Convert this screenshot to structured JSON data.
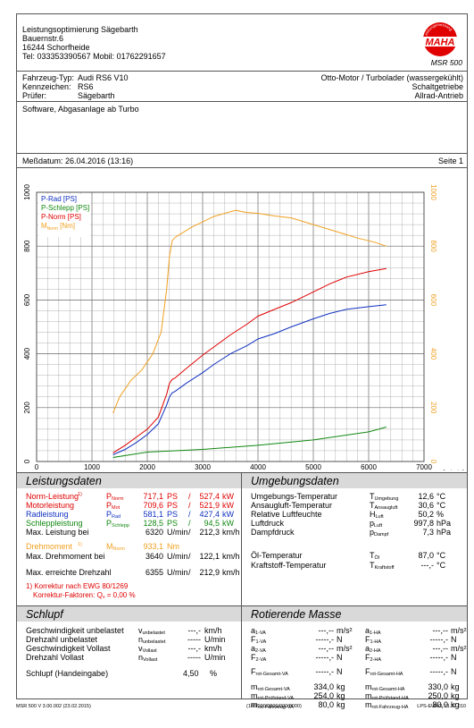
{
  "header": {
    "company_lines": [
      "Leistungsoptimierung Sägebarth",
      "Bauernstr.6",
      "16244 Schorfheide",
      "Tel: 033353390567 Mobil: 01762291657"
    ],
    "logo_ring_text": "Leistungsmessung",
    "logo_text": "MAHA",
    "model": "MSR 500"
  },
  "vehicle": {
    "rows": [
      {
        "label": "Fahrzeug-Typ:",
        "value": "Audi RS6 V10"
      },
      {
        "label": "Kennzeichen:",
        "value": "RS6"
      },
      {
        "label": "Prüfer:",
        "value": "Sägebarth"
      }
    ],
    "engine": "Otto-Motor / Turbolader (wassergekühlt)",
    "gearbox": "Schaltgetriebe",
    "drive": "Allrad-Antrieb",
    "note": "Software, Abgasanlage ab Turbo"
  },
  "measurement": {
    "date": "Meßdatum: 26.04.2016 (13:16)",
    "page": "Seite 1"
  },
  "chart_data": {
    "type": "line",
    "x_unit": "n [U/min]",
    "xlim": [
      0,
      7000
    ],
    "ylim_left": [
      0,
      1000
    ],
    "ylim_right": [
      0,
      1000
    ],
    "x_ticks": [
      "0",
      "1000",
      "2000",
      "3000",
      "4000",
      "5000",
      "6000",
      "7000"
    ],
    "y_ticks_left": [
      "0",
      "200",
      "400",
      "600",
      "800",
      "1000"
    ],
    "y_ticks_right": [
      "0",
      "200",
      "400",
      "600",
      "800",
      "1000"
    ],
    "legend": [
      "P-Rad [PS]",
      "P-Schlepp [PS]",
      "P-Norm [PS]",
      "M_Norm [Nm]"
    ],
    "series": [
      {
        "name": "P-Rad [PS]",
        "color": "#1030c0",
        "x": [
          1380,
          1600,
          1800,
          2000,
          2200,
          2350,
          2400,
          2450,
          2500,
          2700,
          3000,
          3200,
          3500,
          3800,
          4000,
          4300,
          4600,
          5000,
          5300,
          5600,
          6000,
          6320
        ],
        "y": [
          25,
          45,
          70,
          100,
          140,
          210,
          240,
          255,
          260,
          290,
          330,
          360,
          400,
          430,
          455,
          475,
          500,
          530,
          550,
          565,
          575,
          582
        ]
      },
      {
        "name": "P-Schlepp [PS]",
        "color": "#118811",
        "x": [
          1380,
          2000,
          3000,
          4000,
          5000,
          6000,
          6320
        ],
        "y": [
          15,
          35,
          45,
          60,
          80,
          110,
          128
        ]
      },
      {
        "name": "P-Norm [PS]",
        "color": "#e00000",
        "x": [
          1380,
          1600,
          1800,
          2000,
          2200,
          2350,
          2400,
          2450,
          2500,
          2700,
          3000,
          3200,
          3500,
          3800,
          4000,
          4300,
          4600,
          5000,
          5300,
          5600,
          6000,
          6320
        ],
        "y": [
          32,
          60,
          90,
          120,
          165,
          250,
          290,
          305,
          310,
          345,
          395,
          425,
          470,
          510,
          540,
          565,
          590,
          630,
          660,
          685,
          705,
          717
        ]
      },
      {
        "name": "M_Norm [Nm]",
        "color": "#f0a020",
        "x": [
          1380,
          1500,
          1700,
          1900,
          2100,
          2250,
          2350,
          2400,
          2450,
          2500,
          2600,
          2800,
          3000,
          3200,
          3400,
          3600,
          3800,
          4000,
          4300,
          4600,
          5000,
          5400,
          5800,
          6100,
          6320
        ],
        "y": [
          180,
          240,
          300,
          340,
          400,
          480,
          640,
          760,
          820,
          832,
          845,
          870,
          890,
          910,
          922,
          933,
          925,
          922,
          912,
          905,
          880,
          855,
          830,
          815,
          800
        ]
      }
    ]
  },
  "leistung": {
    "title": "Leistungsdaten",
    "rows": [
      {
        "label": "Norm-Leistung",
        "mark": "1)",
        "sym": "P",
        "sub": "Norm",
        "v1": "717,1",
        "u1": "PS",
        "sep": "/",
        "v2": "527,4",
        "u2": "kW",
        "color": "red"
      },
      {
        "label": "Motorleistung",
        "mark": "",
        "sym": "P",
        "sub": "Mot",
        "v1": "709,6",
        "u1": "PS",
        "sep": "/",
        "v2": "521,9",
        "u2": "kW",
        "color": "red"
      },
      {
        "label": "Radleistung",
        "mark": "",
        "sym": "P",
        "sub": "Rad",
        "v1": "581,1",
        "u1": "PS",
        "sep": "/",
        "v2": "427,4",
        "u2": "kW",
        "color": "blue"
      },
      {
        "label": "Schleppleistung",
        "mark": "",
        "sym": "P",
        "sub": "Schlepp",
        "v1": "128,5",
        "u1": "PS",
        "sep": "/",
        "v2": "94,5",
        "u2": "kW",
        "color": "green"
      },
      {
        "label": "Max. Leistung bei",
        "mark": "",
        "sym": "",
        "sub": "",
        "v1": "6320",
        "u1": "U/min",
        "sep": "/",
        "v2": "212,3",
        "u2": "km/h",
        "color": ""
      }
    ],
    "rows2": [
      {
        "label": "Drehmoment",
        "mark": "1)",
        "sym": "M",
        "sub": "Norm",
        "v1": "933,1",
        "u1": "Nm",
        "sep": "",
        "v2": "",
        "u2": "",
        "color": "orange"
      },
      {
        "label": "Max. Drehmoment bei",
        "mark": "",
        "sym": "",
        "sub": "",
        "v1": "3640",
        "u1": "U/min",
        "sep": "/",
        "v2": "122,1",
        "u2": "km/h",
        "color": ""
      }
    ],
    "max_rpm": {
      "label": "Max. erreichte Drehzahl",
      "v1": "6355",
      "u1": "U/min",
      "sep": "/",
      "v2": "212,9",
      "u2": "km/h"
    },
    "correction_1": "1) Korrektur nach EWG 80/1269",
    "correction_2": "Korrektur-Faktoren: Q",
    "correction_sub": "v",
    "correction_3": " =  0,00 %"
  },
  "umgebung": {
    "title": "Umgebungsdaten",
    "rows": [
      {
        "label": "Umgebungs-Temperatur",
        "sym": "T",
        "sub": "Umgebung",
        "val": "12,6",
        "unit": "°C"
      },
      {
        "label": "Ansaugluft-Temperatur",
        "sym": "T",
        "sub": "Ansaugluft",
        "val": "30,6",
        "unit": "°C"
      },
      {
        "label": "Relative Luftfeuchte",
        "sym": "H",
        "sub": "Luft",
        "val": "50,2",
        "unit": "%"
      },
      {
        "label": "Luftdruck",
        "sym": "p",
        "sub": "Luft",
        "val": "997,8",
        "unit": "hPa"
      },
      {
        "label": "Dampfdruck",
        "sym": "p",
        "sub": "Dampf",
        "val": "7,3",
        "unit": "hPa"
      }
    ],
    "rows2": [
      {
        "label": "Öl-Temperatur",
        "sym": "T",
        "sub": "Öl",
        "val": "87,0",
        "unit": "°C"
      },
      {
        "label": "Kraftstoff-Temperatur",
        "sym": "T",
        "sub": "Kraftstoff",
        "val": "---,-",
        "unit": "°C"
      }
    ]
  },
  "schlupf": {
    "title": "Schlupf",
    "rows": [
      {
        "label": "Geschwindigkeit unbelastet",
        "sym": "v",
        "sub": "unbelastet",
        "val": "---,-",
        "unit": "km/h"
      },
      {
        "label": "Drehzahl unbelastet",
        "sym": "n",
        "sub": "unbelastet",
        "val": "-----",
        "unit": "U/min"
      },
      {
        "label": "Geschwindigkeit Vollast",
        "sym": "v",
        "sub": "Vollast",
        "val": "---,-",
        "unit": "km/h"
      },
      {
        "label": "Drehzahl Vollast",
        "sym": "n",
        "sub": "Vollast",
        "val": "-----",
        "unit": "U/min"
      }
    ],
    "slip": {
      "label": "Schlupf (Handeingabe)",
      "val": "4,50",
      "unit": "%"
    }
  },
  "masse": {
    "title": "Rotierende Masse",
    "left": [
      {
        "sym": "a",
        "sub": "1-VA",
        "val": "---,--",
        "unit": "m/s²"
      },
      {
        "sym": "F",
        "sub": "1-VA",
        "val": "-----,-",
        "unit": "N"
      },
      {
        "sym": "a",
        "sub": "2-VA",
        "val": "---,--",
        "unit": "m/s²"
      },
      {
        "sym": "F",
        "sub": "2-VA",
        "val": "-----,-",
        "unit": "N"
      }
    ],
    "right": [
      {
        "sym": "a",
        "sub": "1-HA",
        "val": "---,--",
        "unit": "m/s²"
      },
      {
        "sym": "F",
        "sub": "1-HA",
        "val": "-----,-",
        "unit": "N"
      },
      {
        "sym": "a",
        "sub": "2-HA",
        "val": "---,--",
        "unit": "m/s²"
      },
      {
        "sym": "F",
        "sub": "2-HA",
        "val": "-----,-",
        "unit": "N"
      }
    ],
    "f_left": {
      "sym": "F",
      "sub": "rot-Gesamt-VA",
      "val": "-----,-",
      "unit": "N"
    },
    "f_right": {
      "sym": "F",
      "sub": "rot-Gesamt-HA",
      "val": "-----,-",
      "unit": "N"
    },
    "m_left": [
      {
        "sym": "m",
        "sub": "rot-Gesamt-VA",
        "val": "334,0",
        "unit": "kg"
      },
      {
        "sym": "m",
        "sub": "rot-Prüfstand-VA",
        "val": "254,0",
        "unit": "kg"
      },
      {
        "sym": "m",
        "sub": "rot-Fahrzeug-VA",
        "val": "80,0",
        "unit": "kg"
      }
    ],
    "m_right": [
      {
        "sym": "m",
        "sub": "rot-Gesamt-HA",
        "val": "330,0",
        "unit": "kg"
      },
      {
        "sym": "m",
        "sub": "rot-Prüfstand-HA",
        "val": "250,0",
        "unit": "kg"
      },
      {
        "sym": "m",
        "sub": "rot-Fahrzeug-HA",
        "val": "80,0",
        "unit": "kg"
      }
    ]
  },
  "footer": {
    "left": "MSR 500 V 3.00.002 (23.02.2015)",
    "center": "(100/000/0000/000/0000)",
    "right": "LPS-EURO V1.37.010"
  }
}
